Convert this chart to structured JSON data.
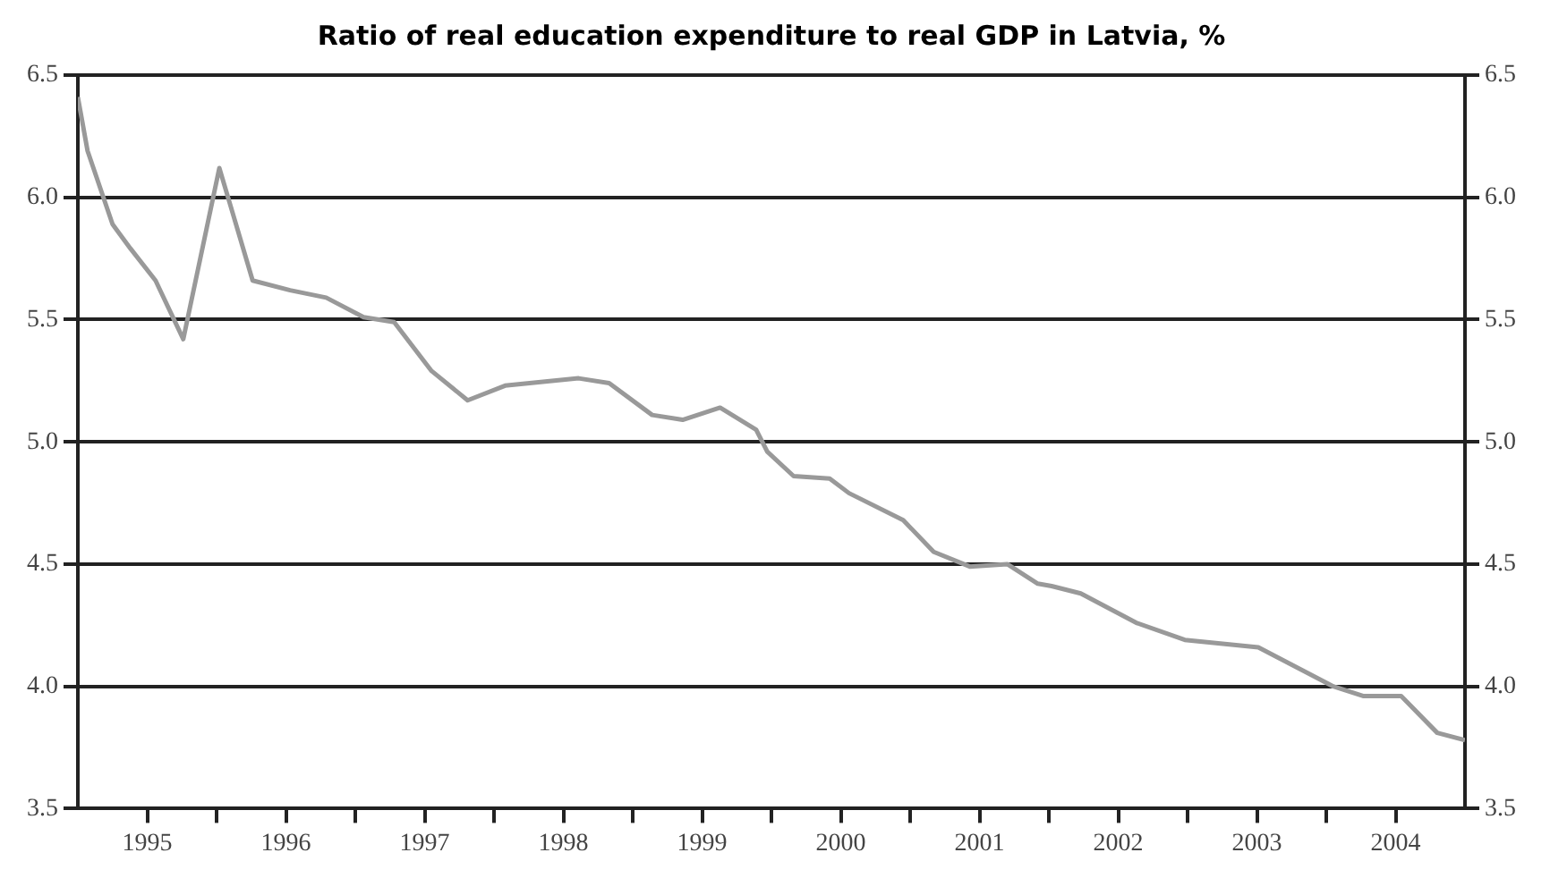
{
  "chart_data": {
    "type": "line",
    "title": "Ratio of real education expenditure to real GDP in Latvia, %",
    "xlim": [
      1995,
      2005
    ],
    "xticks": [
      {
        "value": 1995.5,
        "label": "1995"
      },
      {
        "value": 1996.5,
        "label": "1996"
      },
      {
        "value": 1997.5,
        "label": "1997"
      },
      {
        "value": 1998.5,
        "label": "1998"
      },
      {
        "value": 1999.5,
        "label": "1999"
      },
      {
        "value": 2000.5,
        "label": "2000"
      },
      {
        "value": 2001.5,
        "label": "2001"
      },
      {
        "value": 2002.5,
        "label": "2002"
      },
      {
        "value": 2003.5,
        "label": "2003"
      },
      {
        "value": 2004.5,
        "label": "2004"
      },
      {
        "value": 1996,
        "label": null
      },
      {
        "value": 1997,
        "label": null
      },
      {
        "value": 1998,
        "label": null
      },
      {
        "value": 1999,
        "label": null
      },
      {
        "value": 2000,
        "label": null
      },
      {
        "value": 2001,
        "label": null
      },
      {
        "value": 2002,
        "label": null
      },
      {
        "value": 2003,
        "label": null
      },
      {
        "value": 2004,
        "label": null
      }
    ],
    "ylim": [
      3.5,
      6.5
    ],
    "yticks": [
      3.5,
      {
        "value": 4,
        "label": "4.0"
      },
      4.5,
      {
        "value": 5,
        "label": "5.0"
      },
      5.5,
      {
        "value": 6,
        "label": "6.0"
      },
      6.5
    ],
    "y2lim": [
      3.5,
      6.5
    ],
    "y2ticks": [
      3.5,
      {
        "value": 4,
        "label": "4.0"
      },
      4.5,
      {
        "value": 5,
        "label": "5.0"
      },
      5.5,
      {
        "value": 6,
        "label": "6.0"
      },
      6.5
    ],
    "grid": "y",
    "legend": false,
    "marker": "none",
    "line_style": "solid",
    "series": [
      {
        "color": "#999999",
        "x": [
          1995,
          1995.07,
          1995.25,
          1995.38,
          1995.56,
          1995.76,
          1996.02,
          1996.26,
          1996.53,
          1996.79,
          1997.06,
          1997.28,
          1997.55,
          1997.81,
          1998.08,
          1998.61,
          1998.83,
          1999.14,
          1999.36,
          1999.63,
          1999.89,
          1999.97,
          2000.16,
          2000.42,
          2000.56,
          2000.95,
          2001.17,
          2001.43,
          2001.7,
          2001.92,
          2002.02,
          2002.23,
          2002.63,
          2002.98,
          2003.51,
          2004.05,
          2004.27,
          2004.54,
          2004.8,
          2005
        ],
        "values": [
          6.41,
          6.19,
          5.89,
          5.79,
          5.66,
          5.42,
          6.12,
          5.66,
          5.62,
          5.59,
          5.51,
          5.49,
          5.29,
          5.17,
          5.23,
          5.26,
          5.24,
          5.11,
          5.09,
          5.14,
          5.05,
          4.96,
          4.86,
          4.85,
          4.79,
          4.68,
          4.55,
          4.49,
          4.5,
          4.42,
          4.41,
          4.38,
          4.26,
          4.19,
          4.16,
          4.0,
          3.96,
          3.96,
          3.81,
          3.78
        ]
      }
    ]
  }
}
